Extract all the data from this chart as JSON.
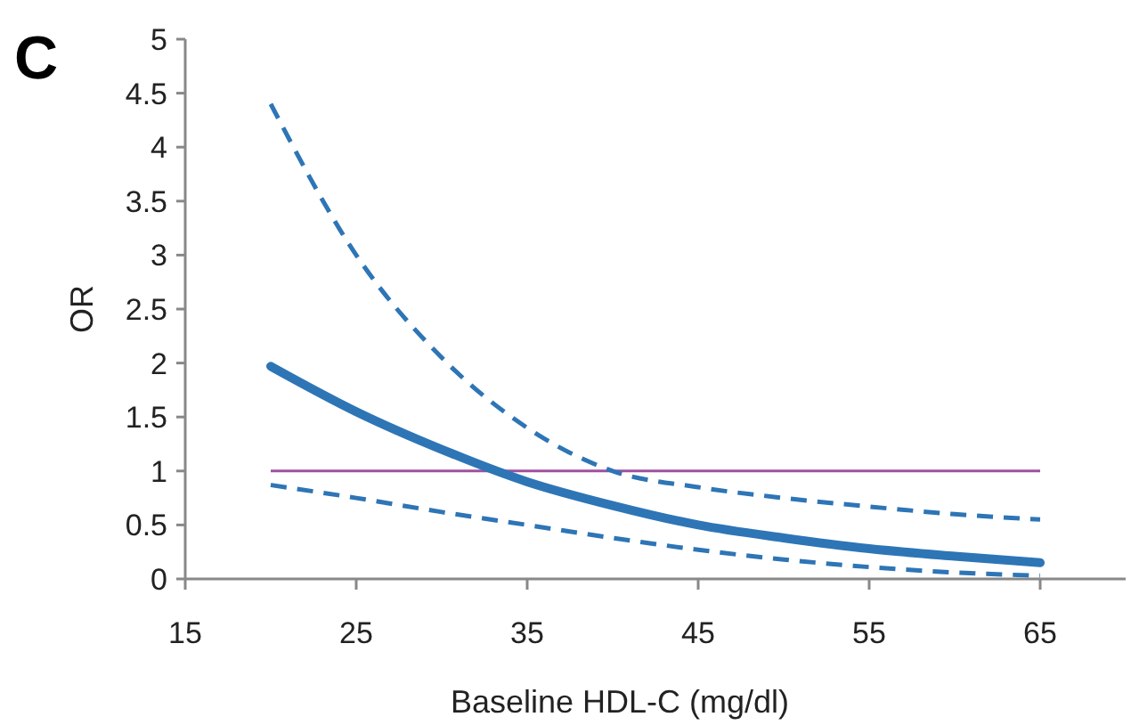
{
  "chart_data": {
    "type": "line",
    "xlabel": "Baseline HDL-C (mg/dl)",
    "ylabel": "OR",
    "annotations": [
      "C"
    ],
    "x": [
      20,
      25,
      30,
      35,
      40,
      45,
      50,
      55,
      60,
      65
    ],
    "series": [
      {
        "color": "#2e75b6",
        "line_style": "solid",
        "values": [
          1.97,
          1.55,
          1.2,
          0.9,
          0.68,
          0.5,
          0.38,
          0.28,
          0.21,
          0.15
        ]
      },
      {
        "color": "#2e75b6",
        "line_style": "dashed",
        "values": [
          4.4,
          3.0,
          2.05,
          1.4,
          1.0,
          0.85,
          0.75,
          0.67,
          0.6,
          0.55
        ]
      },
      {
        "color": "#2e75b6",
        "line_style": "dashed",
        "values": [
          0.87,
          0.75,
          0.62,
          0.5,
          0.38,
          0.27,
          0.18,
          0.11,
          0.06,
          0.03
        ]
      }
    ],
    "ref_lines": [
      {
        "axis": "y",
        "value": 1,
        "color": "#a050a0"
      }
    ],
    "xlim": [
      15,
      70
    ],
    "xticks": [
      15,
      25,
      35,
      45,
      55,
      65
    ],
    "ylim": [
      0,
      5
    ],
    "yticks": [
      0,
      0.5,
      1,
      1.5,
      2,
      2.5,
      3,
      3.5,
      4,
      4.5,
      5
    ],
    "grid": false,
    "marker": "none"
  }
}
